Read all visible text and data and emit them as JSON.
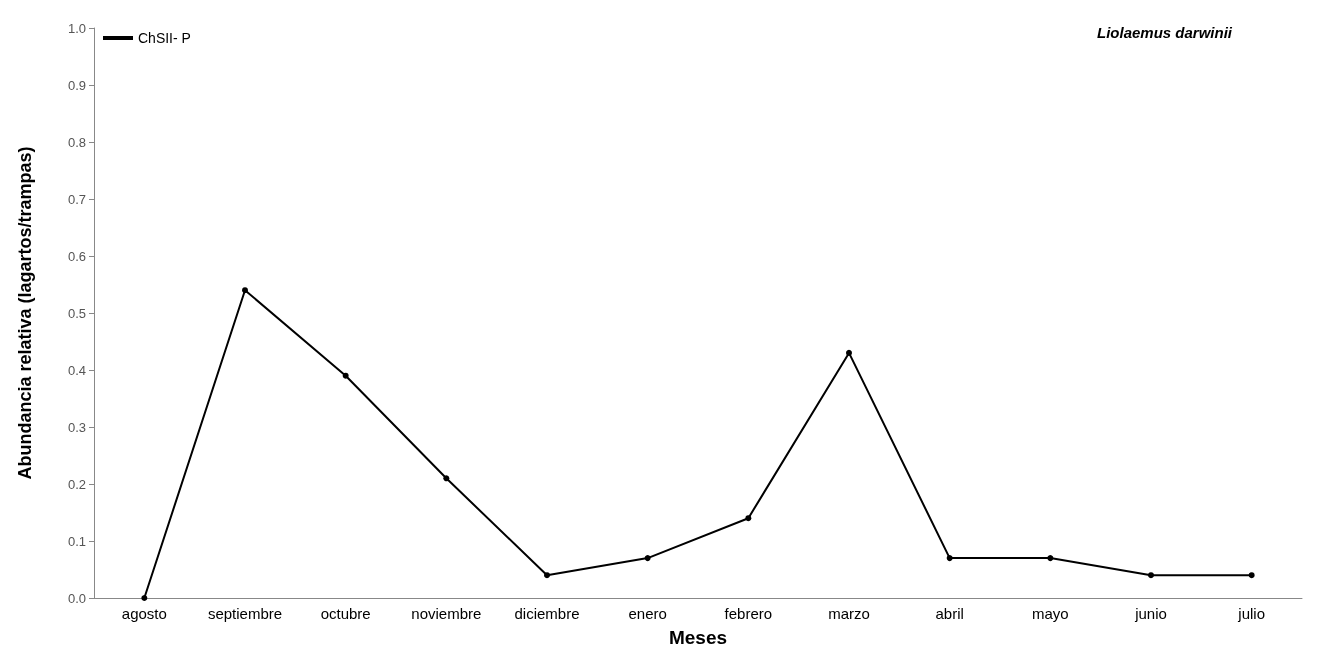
{
  "chart_data": {
    "type": "line",
    "title": "Liolaemus darwinii",
    "xlabel": "Meses",
    "ylabel": "Abundancia relativa (lagartos/trampas)",
    "categories": [
      "agosto",
      "septiembre",
      "octubre",
      "noviembre",
      "diciembre",
      "enero",
      "febrero",
      "marzo",
      "abril",
      "mayo",
      "junio",
      "julio"
    ],
    "series": [
      {
        "name": "ChSII- P",
        "color": "#000000",
        "values": [
          0,
          0.54,
          0.39,
          0.21,
          0.04,
          0.07,
          0.14,
          0.43,
          0.07,
          0.07,
          0.04,
          0.04
        ]
      }
    ],
    "ylim": [
      0,
      1
    ],
    "yticks": [
      {
        "value": 0,
        "label": "0.0"
      },
      {
        "value": 0.1,
        "label": "0.1"
      },
      {
        "value": 0.2,
        "label": "0.2"
      },
      {
        "value": 0.3,
        "label": "0.3"
      },
      {
        "value": 0.4,
        "label": "0.4"
      },
      {
        "value": 0.5,
        "label": "0.5"
      },
      {
        "value": 0.6,
        "label": "0.6"
      },
      {
        "value": 0.7,
        "label": "0.7"
      },
      {
        "value": 0.8,
        "label": "0.8"
      },
      {
        "value": 0.9,
        "label": "0.9"
      },
      {
        "value": 1,
        "label": "1.0"
      }
    ],
    "grid": false,
    "legend": "top left",
    "marker": "circle",
    "line_style": "solid"
  }
}
